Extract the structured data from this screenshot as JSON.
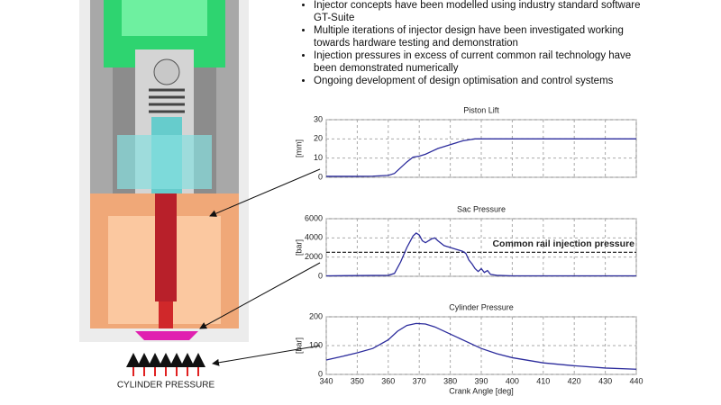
{
  "bullets": [
    "Injector concepts have been modelled using industry standard software GT-Suite",
    "Multiple iterations of injector design have been investigated working towards hardware testing and demonstration",
    "Injection pressures in excess of current common rail technology have been demonstrated numerically",
    "Ongoing development of design optimisation and control systems"
  ],
  "cylinder_label": "CYLINDER PRESSURE",
  "chart_data": [
    {
      "type": "line",
      "title": "Piston Lift",
      "ylabel": "[mm]",
      "xlim": [
        340,
        440
      ],
      "xticks": [
        340,
        350,
        360,
        370,
        380,
        390,
        400,
        410,
        420,
        430,
        440
      ],
      "show_xtick_labels": false,
      "ylim": [
        0,
        30
      ],
      "yticks": [
        0,
        10,
        20,
        30
      ],
      "grid": true,
      "series": [
        {
          "color": "#2b2b9c",
          "x": [
            340,
            350,
            355,
            360,
            362,
            364,
            366,
            368,
            370,
            372,
            374,
            376,
            378,
            380,
            382,
            384,
            386,
            388,
            390,
            400,
            440
          ],
          "values": [
            0.5,
            0.5,
            0.6,
            1,
            2,
            5,
            8,
            10.5,
            11,
            12,
            13.5,
            15,
            16,
            17,
            18,
            19,
            19.5,
            20,
            20,
            20,
            20
          ]
        }
      ]
    },
    {
      "type": "line",
      "title": "Sac Pressure",
      "ylabel": "[bar]",
      "xlim": [
        340,
        440
      ],
      "xticks": [
        340,
        350,
        360,
        370,
        380,
        390,
        400,
        410,
        420,
        430,
        440
      ],
      "show_xtick_labels": false,
      "ylim": [
        0,
        6000
      ],
      "yticks": [
        0,
        2000,
        4000,
        6000
      ],
      "grid": true,
      "annotation": {
        "text": "Common rail injection pressure",
        "y": 2500
      },
      "series": [
        {
          "color": "#2b2b9c",
          "x": [
            340,
            360,
            362,
            364,
            366,
            368,
            369,
            370,
            371,
            372,
            374,
            375,
            376,
            378,
            380,
            382,
            384,
            385,
            386,
            387,
            388,
            389,
            390,
            391,
            392,
            393,
            395,
            400,
            440
          ],
          "values": [
            50,
            100,
            300,
            1500,
            3000,
            4200,
            4500,
            4300,
            3700,
            3500,
            3900,
            4000,
            3700,
            3200,
            3000,
            2800,
            2600,
            2400,
            1700,
            1300,
            800,
            500,
            800,
            400,
            600,
            200,
            100,
            50,
            50
          ]
        }
      ]
    },
    {
      "type": "line",
      "title": "Cylinder Pressure",
      "ylabel": "[bar]",
      "xlabel": "Crank Angle [deg]",
      "xlim": [
        340,
        440
      ],
      "xticks": [
        340,
        350,
        360,
        370,
        380,
        390,
        400,
        410,
        420,
        430,
        440
      ],
      "show_xtick_labels": true,
      "ylim": [
        0,
        200
      ],
      "yticks": [
        0,
        100,
        200
      ],
      "grid": true,
      "series": [
        {
          "color": "#2b2b9c",
          "x": [
            340,
            345,
            350,
            355,
            360,
            363,
            366,
            369,
            372,
            375,
            380,
            385,
            390,
            395,
            400,
            410,
            420,
            430,
            440
          ],
          "values": [
            50,
            62,
            75,
            90,
            120,
            150,
            170,
            177,
            175,
            165,
            140,
            115,
            90,
            72,
            58,
            40,
            30,
            22,
            18
          ]
        }
      ]
    }
  ]
}
